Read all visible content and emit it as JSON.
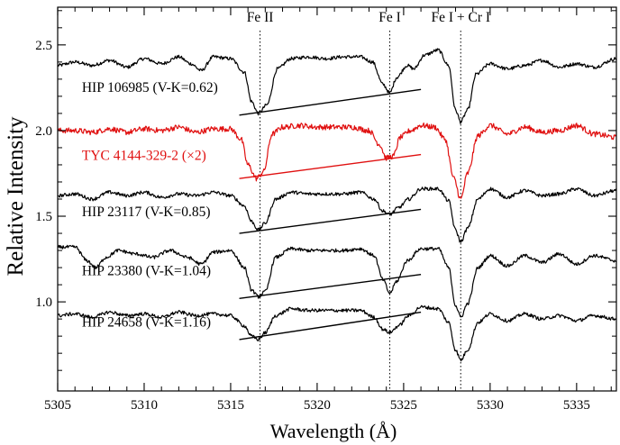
{
  "chart_data": {
    "type": "line",
    "title": "",
    "xlabel": "Wavelength (Å)",
    "ylabel": "Relative Intensity",
    "xlim": [
      5305,
      5337.3
    ],
    "ylim": [
      0.48,
      2.72
    ],
    "x_ticks": [
      5305,
      5310,
      5315,
      5320,
      5325,
      5330,
      5335
    ],
    "y_ticks": [
      1.0,
      1.5,
      2.0,
      2.5
    ],
    "x_tick_labels": [
      "5305",
      "5310",
      "5315",
      "5320",
      "5325",
      "5330",
      "5335"
    ],
    "y_tick_labels": [
      "1.0",
      "1.5",
      "2.0",
      "2.5"
    ],
    "line_markers": [
      {
        "label": "Fe II",
        "wavelength": 5316.7
      },
      {
        "label": "Fe I",
        "wavelength": 5324.2
      },
      {
        "label": "Fe I + Cr I",
        "wavelength": 5328.3
      }
    ],
    "series": [
      {
        "name": "HIP 106985 (V-K=0.62)",
        "color": "#000000",
        "noise": 0.01,
        "points": [
          [
            5305,
            2.38
          ],
          [
            5306,
            2.4
          ],
          [
            5307,
            2.38
          ],
          [
            5308,
            2.41
          ],
          [
            5309,
            2.37
          ],
          [
            5310,
            2.42
          ],
          [
            5311,
            2.39
          ],
          [
            5312,
            2.43
          ],
          [
            5312.7,
            2.39
          ],
          [
            5313.3,
            2.35
          ],
          [
            5314,
            2.43
          ],
          [
            5315,
            2.42
          ],
          [
            5315.8,
            2.34
          ],
          [
            5316.2,
            2.17
          ],
          [
            5316.6,
            2.1
          ],
          [
            5317.1,
            2.15
          ],
          [
            5317.7,
            2.36
          ],
          [
            5318.5,
            2.42
          ],
          [
            5319.5,
            2.43
          ],
          [
            5320.5,
            2.42
          ],
          [
            5321.5,
            2.43
          ],
          [
            5322.5,
            2.43
          ],
          [
            5323.2,
            2.4
          ],
          [
            5323.8,
            2.27
          ],
          [
            5324.2,
            2.22
          ],
          [
            5324.6,
            2.31
          ],
          [
            5325.2,
            2.38
          ],
          [
            5325.6,
            2.36
          ],
          [
            5326.2,
            2.44
          ],
          [
            5327,
            2.47
          ],
          [
            5327.6,
            2.38
          ],
          [
            5328.0,
            2.12
          ],
          [
            5328.3,
            2.05
          ],
          [
            5328.7,
            2.12
          ],
          [
            5329.2,
            2.33
          ],
          [
            5330,
            2.39
          ],
          [
            5331,
            2.36
          ],
          [
            5332,
            2.38
          ],
          [
            5333,
            2.41
          ],
          [
            5334,
            2.37
          ],
          [
            5335,
            2.39
          ],
          [
            5336,
            2.37
          ],
          [
            5337.3,
            2.42
          ]
        ]
      },
      {
        "name": "TYC 4144-329-2 (×2)",
        "color": "#e01010",
        "noise": 0.016,
        "points": [
          [
            5305,
            2.0
          ],
          [
            5306,
            2.0
          ],
          [
            5307,
            1.99
          ],
          [
            5308,
            2.01
          ],
          [
            5309,
            1.99
          ],
          [
            5310,
            2.01
          ],
          [
            5311,
            2.0
          ],
          [
            5312,
            2.02
          ],
          [
            5313,
            1.99
          ],
          [
            5314,
            2.01
          ],
          [
            5315,
            2.01
          ],
          [
            5315.6,
            1.95
          ],
          [
            5316.0,
            1.8
          ],
          [
            5316.5,
            1.72
          ],
          [
            5316.9,
            1.76
          ],
          [
            5317.4,
            1.98
          ],
          [
            5318,
            2.02
          ],
          [
            5319,
            2.03
          ],
          [
            5320,
            2.02
          ],
          [
            5321,
            2.02
          ],
          [
            5322,
            2.02
          ],
          [
            5323,
            2.0
          ],
          [
            5323.6,
            1.92
          ],
          [
            5324.0,
            1.84
          ],
          [
            5324.4,
            1.85
          ],
          [
            5324.8,
            1.96
          ],
          [
            5325.4,
            2.0
          ],
          [
            5326,
            2.03
          ],
          [
            5326.8,
            2.02
          ],
          [
            5327.4,
            1.95
          ],
          [
            5327.9,
            1.72
          ],
          [
            5328.3,
            1.6
          ],
          [
            5328.7,
            1.75
          ],
          [
            5329.3,
            1.97
          ],
          [
            5330,
            2.03
          ],
          [
            5331,
            1.98
          ],
          [
            5332,
            2.02
          ],
          [
            5333,
            1.99
          ],
          [
            5334,
            2.0
          ],
          [
            5335,
            2.03
          ],
          [
            5336,
            1.98
          ],
          [
            5337.3,
            1.96
          ]
        ]
      },
      {
        "name": "HIP 23117 (V-K=0.85)",
        "color": "#000000",
        "noise": 0.01,
        "points": [
          [
            5305,
            1.62
          ],
          [
            5306,
            1.63
          ],
          [
            5307,
            1.6
          ],
          [
            5308,
            1.64
          ],
          [
            5309,
            1.62
          ],
          [
            5310,
            1.64
          ],
          [
            5311,
            1.61
          ],
          [
            5312,
            1.63
          ],
          [
            5313,
            1.62
          ],
          [
            5314,
            1.64
          ],
          [
            5315,
            1.62
          ],
          [
            5315.8,
            1.56
          ],
          [
            5316.2,
            1.47
          ],
          [
            5316.6,
            1.42
          ],
          [
            5317.0,
            1.46
          ],
          [
            5317.6,
            1.6
          ],
          [
            5318.5,
            1.64
          ],
          [
            5319.5,
            1.63
          ],
          [
            5320.5,
            1.63
          ],
          [
            5321.5,
            1.63
          ],
          [
            5322.5,
            1.64
          ],
          [
            5323.3,
            1.6
          ],
          [
            5323.8,
            1.53
          ],
          [
            5324.2,
            1.51
          ],
          [
            5324.7,
            1.55
          ],
          [
            5325.3,
            1.6
          ],
          [
            5326,
            1.66
          ],
          [
            5327,
            1.66
          ],
          [
            5327.6,
            1.59
          ],
          [
            5328.0,
            1.42
          ],
          [
            5328.3,
            1.35
          ],
          [
            5328.7,
            1.43
          ],
          [
            5329.3,
            1.6
          ],
          [
            5330,
            1.66
          ],
          [
            5331,
            1.61
          ],
          [
            5332,
            1.65
          ],
          [
            5333,
            1.62
          ],
          [
            5334,
            1.63
          ],
          [
            5335,
            1.66
          ],
          [
            5336,
            1.62
          ],
          [
            5337.3,
            1.65
          ]
        ]
      },
      {
        "name": "HIP 23380 (V-K=1.04)",
        "color": "#000000",
        "noise": 0.01,
        "points": [
          [
            5305,
            1.32
          ],
          [
            5306,
            1.32
          ],
          [
            5306.7,
            1.24
          ],
          [
            5307.2,
            1.2
          ],
          [
            5307.8,
            1.26
          ],
          [
            5308.5,
            1.3
          ],
          [
            5309.5,
            1.28
          ],
          [
            5310.5,
            1.26
          ],
          [
            5311.5,
            1.3
          ],
          [
            5312.5,
            1.26
          ],
          [
            5313.3,
            1.22
          ],
          [
            5314,
            1.29
          ],
          [
            5315,
            1.3
          ],
          [
            5315.8,
            1.2
          ],
          [
            5316.2,
            1.07
          ],
          [
            5316.6,
            1.03
          ],
          [
            5317.0,
            1.06
          ],
          [
            5317.6,
            1.26
          ],
          [
            5318.5,
            1.31
          ],
          [
            5319.5,
            1.3
          ],
          [
            5320.5,
            1.3
          ],
          [
            5321.5,
            1.3
          ],
          [
            5322.5,
            1.31
          ],
          [
            5323.3,
            1.27
          ],
          [
            5323.8,
            1.13
          ],
          [
            5324.2,
            1.05
          ],
          [
            5324.6,
            1.12
          ],
          [
            5325.2,
            1.24
          ],
          [
            5326,
            1.31
          ],
          [
            5327,
            1.31
          ],
          [
            5327.6,
            1.2
          ],
          [
            5328.0,
            0.98
          ],
          [
            5328.3,
            0.91
          ],
          [
            5328.7,
            0.99
          ],
          [
            5329.3,
            1.2
          ],
          [
            5330,
            1.27
          ],
          [
            5331,
            1.21
          ],
          [
            5332,
            1.27
          ],
          [
            5333,
            1.23
          ],
          [
            5334,
            1.28
          ],
          [
            5335,
            1.22
          ],
          [
            5336,
            1.27
          ],
          [
            5337.3,
            1.24
          ]
        ]
      },
      {
        "name": "HIP 24658 (V-K=1.16)",
        "color": "#000000",
        "noise": 0.01,
        "points": [
          [
            5305,
            0.92
          ],
          [
            5306,
            0.93
          ],
          [
            5307,
            0.91
          ],
          [
            5308,
            0.94
          ],
          [
            5309,
            0.92
          ],
          [
            5310,
            0.93
          ],
          [
            5311,
            0.91
          ],
          [
            5312,
            0.94
          ],
          [
            5313,
            0.92
          ],
          [
            5314,
            0.93
          ],
          [
            5315,
            0.92
          ],
          [
            5315.8,
            0.86
          ],
          [
            5316.2,
            0.8
          ],
          [
            5316.6,
            0.78
          ],
          [
            5317.0,
            0.82
          ],
          [
            5317.6,
            0.92
          ],
          [
            5318.5,
            0.96
          ],
          [
            5319.5,
            0.95
          ],
          [
            5320.5,
            0.95
          ],
          [
            5321.5,
            0.95
          ],
          [
            5322.5,
            0.95
          ],
          [
            5323.3,
            0.91
          ],
          [
            5323.8,
            0.84
          ],
          [
            5324.2,
            0.82
          ],
          [
            5324.7,
            0.86
          ],
          [
            5325.3,
            0.92
          ],
          [
            5326,
            0.97
          ],
          [
            5327,
            0.96
          ],
          [
            5327.6,
            0.88
          ],
          [
            5328.0,
            0.72
          ],
          [
            5328.3,
            0.66
          ],
          [
            5328.7,
            0.72
          ],
          [
            5329.3,
            0.88
          ],
          [
            5330,
            0.93
          ],
          [
            5331,
            0.89
          ],
          [
            5332,
            0.93
          ],
          [
            5333,
            0.9
          ],
          [
            5334,
            0.92
          ],
          [
            5335,
            0.89
          ],
          [
            5336,
            0.92
          ],
          [
            5337.3,
            0.9
          ]
        ]
      }
    ],
    "annotations": [
      {
        "text": "HIP 106985 (V-K=0.62)",
        "x": 5306.4,
        "y": 2.225,
        "color": "#000000"
      },
      {
        "text": "TYC 4144-329-2 (×2)",
        "x": 5306.4,
        "y": 1.83,
        "color": "#e01010"
      },
      {
        "text": "HIP 23117 (V-K=0.85)",
        "x": 5306.4,
        "y": 1.5,
        "color": "#000000"
      },
      {
        "text": "HIP 23380 (V-K=1.04)",
        "x": 5306.4,
        "y": 1.155,
        "color": "#000000"
      },
      {
        "text": "HIP 24658 (V-K=1.16)",
        "x": 5306.4,
        "y": 0.855,
        "color": "#000000"
      }
    ],
    "pseudo_continuum": [
      {
        "series": "HIP 106985 (V-K=0.62)",
        "color": "#000000",
        "from": [
          5315.5,
          2.09
        ],
        "to": [
          5326.0,
          2.24
        ]
      },
      {
        "series": "TYC 4144-329-2 (×2)",
        "color": "#e01010",
        "from": [
          5315.5,
          1.72
        ],
        "to": [
          5326.0,
          1.86
        ]
      },
      {
        "series": "HIP 23117 (V-K=0.85)",
        "color": "#000000",
        "from": [
          5315.5,
          1.4
        ],
        "to": [
          5326.0,
          1.54
        ]
      },
      {
        "series": "HIP 23380 (V-K=1.04)",
        "color": "#000000",
        "from": [
          5315.5,
          1.02
        ],
        "to": [
          5326.0,
          1.16
        ]
      },
      {
        "series": "HIP 24658 (V-K=1.16)",
        "color": "#000000",
        "from": [
          5315.5,
          0.78
        ],
        "to": [
          5326.0,
          0.94
        ]
      }
    ]
  }
}
